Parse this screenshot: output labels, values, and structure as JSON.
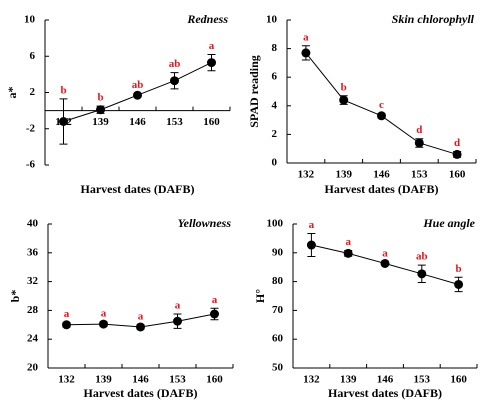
{
  "chart_data": [
    {
      "type": "line",
      "title": "Redness",
      "xlabel": "Harvest dates (DAFB)",
      "ylabel": "a*",
      "categories": [
        "132",
        "139",
        "146",
        "153",
        "160"
      ],
      "values": [
        -1.2,
        0.1,
        1.7,
        3.3,
        5.3
      ],
      "errors": [
        2.5,
        0.4,
        0.2,
        0.9,
        0.9
      ],
      "annotations": [
        "b",
        "b",
        "ab",
        "ab",
        "a"
      ],
      "color": "#000000",
      "annotation_color": "#e8141b",
      "ylim": [
        -6,
        10
      ],
      "yticks": [
        -6,
        -2,
        2,
        6,
        10
      ],
      "x_axis_at": 0
    },
    {
      "type": "line",
      "title": "Skin chlorophyll",
      "xlabel": "Harvest dates (DAFB)",
      "ylabel": "SPAD reading",
      "categories": [
        "132",
        "139",
        "146",
        "153",
        "160"
      ],
      "values": [
        7.7,
        4.4,
        3.3,
        1.4,
        0.6
      ],
      "errors": [
        0.5,
        0.3,
        0.15,
        0.3,
        0.2
      ],
      "annotations": [
        "a",
        "b",
        "c",
        "d",
        "d"
      ],
      "color": "#000000",
      "annotation_color": "#e8141b",
      "ylim": [
        0,
        10
      ],
      "yticks": [
        0,
        2,
        4,
        6,
        8,
        10
      ]
    },
    {
      "type": "line",
      "title": "Yellowness",
      "xlabel": "Harvest dates (DAFB)",
      "ylabel": "b*",
      "categories": [
        "132",
        "139",
        "146",
        "153",
        "160"
      ],
      "values": [
        26,
        26.1,
        25.7,
        26.5,
        27.5
      ],
      "errors": [
        0.3,
        0.3,
        0.3,
        1,
        0.8
      ],
      "annotations": [
        "a",
        "a",
        "a",
        "a",
        "a"
      ],
      "color": "#000000",
      "annotation_color": "#e8141b",
      "ylim": [
        20,
        40
      ],
      "yticks": [
        20,
        24,
        28,
        32,
        36,
        40
      ]
    },
    {
      "type": "line",
      "title": "Hue angle",
      "xlabel": "Harvest dates (DAFB)",
      "ylabel": "H°",
      "categories": [
        "132",
        "139",
        "146",
        "153",
        "160"
      ],
      "values": [
        92.7,
        89.8,
        86.3,
        82.7,
        79
      ],
      "errors": [
        4,
        1,
        0.5,
        3,
        2.5
      ],
      "annotations": [
        "a",
        "a",
        "a",
        "ab",
        "b"
      ],
      "color": "#000000",
      "annotation_color": "#e8141b",
      "ylim": [
        50,
        100
      ],
      "yticks": [
        50,
        60,
        70,
        80,
        90,
        100
      ]
    }
  ]
}
